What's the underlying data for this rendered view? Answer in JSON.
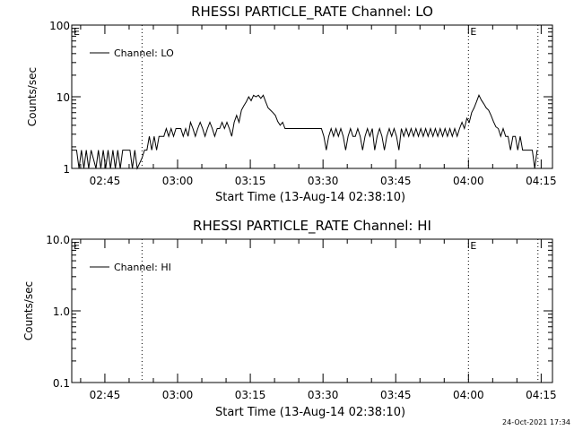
{
  "footer": {
    "timestamp": "24-Oct-2021 17:34"
  },
  "chart_data": [
    {
      "type": "line",
      "title": "RHESSI PARTICLE_RATE Channel: LO",
      "xlabel": "Start Time (13-Aug-14 02:38:10)",
      "ylabel": "Counts/sec",
      "yscale": "log",
      "ylim": [
        1,
        100
      ],
      "xlim": [
        "02:38:10",
        "04:17:20"
      ],
      "x_ticks": [
        "02:45",
        "03:00",
        "03:15",
        "03:30",
        "03:45",
        "04:00",
        "04:15"
      ],
      "y_ticks": [
        "1",
        "10",
        "100"
      ],
      "legend": {
        "position": "top-left",
        "entries": [
          "Channel: LO"
        ]
      },
      "markers": [
        {
          "label": "E",
          "time": "02:38:10",
          "style": "none"
        },
        {
          "label": "",
          "time": "02:52:40",
          "style": "dotted"
        },
        {
          "label": "E",
          "time": "04:00:00",
          "style": "dotted"
        },
        {
          "label": "",
          "time": "04:14:20",
          "style": "dotted"
        }
      ],
      "series": [
        {
          "name": "Channel: LO",
          "points": [
            [
              "02:38:10",
              1.8
            ],
            [
              "02:39:10",
              1.8
            ],
            [
              "02:39:40",
              1.0
            ],
            [
              "02:40:10",
              1.8
            ],
            [
              "02:40:40",
              1.0
            ],
            [
              "02:41:10",
              1.8
            ],
            [
              "02:41:40",
              1.0
            ],
            [
              "02:42:10",
              1.8
            ],
            [
              "02:43:10",
              1.0
            ],
            [
              "02:43:40",
              1.8
            ],
            [
              "02:44:10",
              1.0
            ],
            [
              "02:44:40",
              1.8
            ],
            [
              "02:45:10",
              1.0
            ],
            [
              "02:45:40",
              1.8
            ],
            [
              "02:46:10",
              1.0
            ],
            [
              "02:46:40",
              1.8
            ],
            [
              "02:47:10",
              1.0
            ],
            [
              "02:47:40",
              1.8
            ],
            [
              "02:48:10",
              1.0
            ],
            [
              "02:48:40",
              1.8
            ],
            [
              "02:50:10",
              1.8
            ],
            [
              "02:50:40",
              1.0
            ],
            [
              "02:51:10",
              1.8
            ],
            [
              "02:51:40",
              1.0
            ],
            [
              "02:52:40",
              1.4
            ],
            [
              "02:53:10",
              1.8
            ],
            [
              "02:53:40",
              1.8
            ],
            [
              "02:54:10",
              2.8
            ],
            [
              "02:54:40",
              1.8
            ],
            [
              "02:55:10",
              2.8
            ],
            [
              "02:55:40",
              1.8
            ],
            [
              "02:56:10",
              2.8
            ],
            [
              "02:57:10",
              2.8
            ],
            [
              "02:57:40",
              3.6
            ],
            [
              "02:58:10",
              2.8
            ],
            [
              "02:58:40",
              3.6
            ],
            [
              "02:59:10",
              2.8
            ],
            [
              "02:59:40",
              3.6
            ],
            [
              "03:00:40",
              3.6
            ],
            [
              "03:01:10",
              2.8
            ],
            [
              "03:01:40",
              3.6
            ],
            [
              "03:02:10",
              2.8
            ],
            [
              "03:02:40",
              4.4
            ],
            [
              "03:03:10",
              3.6
            ],
            [
              "03:03:40",
              2.8
            ],
            [
              "03:04:10",
              3.6
            ],
            [
              "03:04:40",
              4.4
            ],
            [
              "03:05:10",
              3.6
            ],
            [
              "03:05:40",
              2.8
            ],
            [
              "03:06:10",
              3.6
            ],
            [
              "03:06:40",
              4.4
            ],
            [
              "03:07:10",
              3.6
            ],
            [
              "03:07:40",
              2.8
            ],
            [
              "03:08:10",
              3.6
            ],
            [
              "03:08:40",
              3.6
            ],
            [
              "03:09:10",
              4.4
            ],
            [
              "03:09:40",
              3.6
            ],
            [
              "03:10:10",
              4.4
            ],
            [
              "03:10:40",
              3.6
            ],
            [
              "03:11:10",
              2.8
            ],
            [
              "03:11:40",
              4.4
            ],
            [
              "03:12:10",
              5.5
            ],
            [
              "03:12:40",
              4.4
            ],
            [
              "03:13:10",
              6.5
            ],
            [
              "03:13:40",
              7.5
            ],
            [
              "03:14:10",
              8.5
            ],
            [
              "03:14:40",
              10.0
            ],
            [
              "03:15:10",
              8.8
            ],
            [
              "03:15:40",
              10.5
            ],
            [
              "03:16:10",
              10.0
            ],
            [
              "03:16:40",
              10.5
            ],
            [
              "03:17:10",
              9.5
            ],
            [
              "03:17:40",
              10.5
            ],
            [
              "03:18:10",
              8.5
            ],
            [
              "03:18:40",
              7.0
            ],
            [
              "03:19:10",
              6.5
            ],
            [
              "03:19:40",
              6.0
            ],
            [
              "03:20:10",
              5.5
            ],
            [
              "03:20:40",
              4.5
            ],
            [
              "03:21:10",
              4.0
            ],
            [
              "03:21:40",
              4.4
            ],
            [
              "03:22:10",
              3.6
            ],
            [
              "03:29:40",
              3.6
            ],
            [
              "03:30:10",
              2.8
            ],
            [
              "03:30:40",
              1.8
            ],
            [
              "03:31:10",
              2.8
            ],
            [
              "03:31:40",
              3.6
            ],
            [
              "03:32:10",
              2.8
            ],
            [
              "03:32:40",
              3.6
            ],
            [
              "03:33:10",
              2.8
            ],
            [
              "03:33:40",
              3.6
            ],
            [
              "03:34:10",
              2.8
            ],
            [
              "03:34:40",
              1.8
            ],
            [
              "03:35:10",
              2.8
            ],
            [
              "03:35:40",
              3.6
            ],
            [
              "03:36:10",
              2.8
            ],
            [
              "03:36:40",
              2.8
            ],
            [
              "03:37:10",
              3.6
            ],
            [
              "03:37:40",
              2.8
            ],
            [
              "03:38:10",
              1.8
            ],
            [
              "03:38:40",
              2.8
            ],
            [
              "03:39:10",
              3.6
            ],
            [
              "03:39:40",
              2.8
            ],
            [
              "03:40:10",
              3.6
            ],
            [
              "03:40:40",
              1.8
            ],
            [
              "03:41:10",
              2.8
            ],
            [
              "03:41:40",
              3.6
            ],
            [
              "03:42:10",
              2.8
            ],
            [
              "03:42:40",
              1.8
            ],
            [
              "03:43:10",
              2.8
            ],
            [
              "03:43:40",
              3.6
            ],
            [
              "03:44:10",
              2.8
            ],
            [
              "03:44:40",
              3.6
            ],
            [
              "03:45:10",
              2.8
            ],
            [
              "03:45:40",
              1.8
            ],
            [
              "03:46:10",
              3.6
            ],
            [
              "03:46:40",
              2.8
            ],
            [
              "03:47:10",
              3.6
            ],
            [
              "03:47:40",
              2.8
            ],
            [
              "03:48:10",
              3.6
            ],
            [
              "03:48:40",
              2.8
            ],
            [
              "03:49:10",
              3.6
            ],
            [
              "03:49:40",
              2.8
            ],
            [
              "03:50:10",
              3.6
            ],
            [
              "03:50:40",
              2.8
            ],
            [
              "03:51:10",
              3.6
            ],
            [
              "03:51:40",
              2.8
            ],
            [
              "03:52:10",
              3.6
            ],
            [
              "03:52:40",
              2.8
            ],
            [
              "03:53:10",
              3.6
            ],
            [
              "03:53:40",
              2.8
            ],
            [
              "03:54:10",
              3.6
            ],
            [
              "03:54:40",
              2.8
            ],
            [
              "03:55:10",
              3.6
            ],
            [
              "03:55:40",
              2.8
            ],
            [
              "03:56:10",
              3.6
            ],
            [
              "03:56:40",
              2.8
            ],
            [
              "03:57:10",
              3.6
            ],
            [
              "03:57:40",
              2.8
            ],
            [
              "03:58:10",
              3.6
            ],
            [
              "03:58:40",
              4.4
            ],
            [
              "03:59:10",
              3.6
            ],
            [
              "03:59:40",
              5.0
            ],
            [
              "04:00:10",
              4.4
            ],
            [
              "04:00:40",
              6.0
            ],
            [
              "04:01:10",
              7.0
            ],
            [
              "04:01:40",
              8.5
            ],
            [
              "04:02:10",
              10.5
            ],
            [
              "04:02:40",
              9.0
            ],
            [
              "04:03:10",
              8.0
            ],
            [
              "04:03:40",
              7.0
            ],
            [
              "04:04:10",
              6.5
            ],
            [
              "04:04:40",
              5.5
            ],
            [
              "04:05:10",
              4.5
            ],
            [
              "04:05:40",
              3.8
            ],
            [
              "04:06:10",
              3.6
            ],
            [
              "04:06:40",
              2.8
            ],
            [
              "04:07:10",
              3.6
            ],
            [
              "04:07:40",
              2.8
            ],
            [
              "04:08:10",
              2.8
            ],
            [
              "04:08:40",
              1.8
            ],
            [
              "04:09:10",
              2.8
            ],
            [
              "04:09:40",
              2.8
            ],
            [
              "04:10:10",
              1.8
            ],
            [
              "04:10:40",
              2.8
            ],
            [
              "04:11:10",
              1.8
            ],
            [
              "04:12:10",
              1.8
            ],
            [
              "04:12:40",
              1.8
            ],
            [
              "04:13:10",
              1.8
            ],
            [
              "04:13:40",
              1.0
            ],
            [
              "04:14:10",
              1.8
            ]
          ]
        }
      ]
    },
    {
      "type": "line",
      "title": "RHESSI PARTICLE_RATE Channel: HI",
      "xlabel": "Start Time (13-Aug-14 02:38:10)",
      "ylabel": "Counts/sec",
      "yscale": "log",
      "ylim": [
        0.1,
        10.0
      ],
      "xlim": [
        "02:38:10",
        "04:17:20"
      ],
      "x_ticks": [
        "02:45",
        "03:00",
        "03:15",
        "03:30",
        "03:45",
        "04:00",
        "04:15"
      ],
      "y_ticks": [
        "0.1",
        "1.0",
        "10.0"
      ],
      "legend": {
        "position": "top-left",
        "entries": [
          "Channel: HI"
        ]
      },
      "markers": [
        {
          "label": "E",
          "time": "02:38:10",
          "style": "none"
        },
        {
          "label": "",
          "time": "02:52:40",
          "style": "dotted"
        },
        {
          "label": "E",
          "time": "04:00:00",
          "style": "dotted"
        },
        {
          "label": "",
          "time": "04:14:20",
          "style": "dotted"
        }
      ],
      "series": [
        {
          "name": "Channel: HI",
          "points": []
        }
      ]
    }
  ]
}
